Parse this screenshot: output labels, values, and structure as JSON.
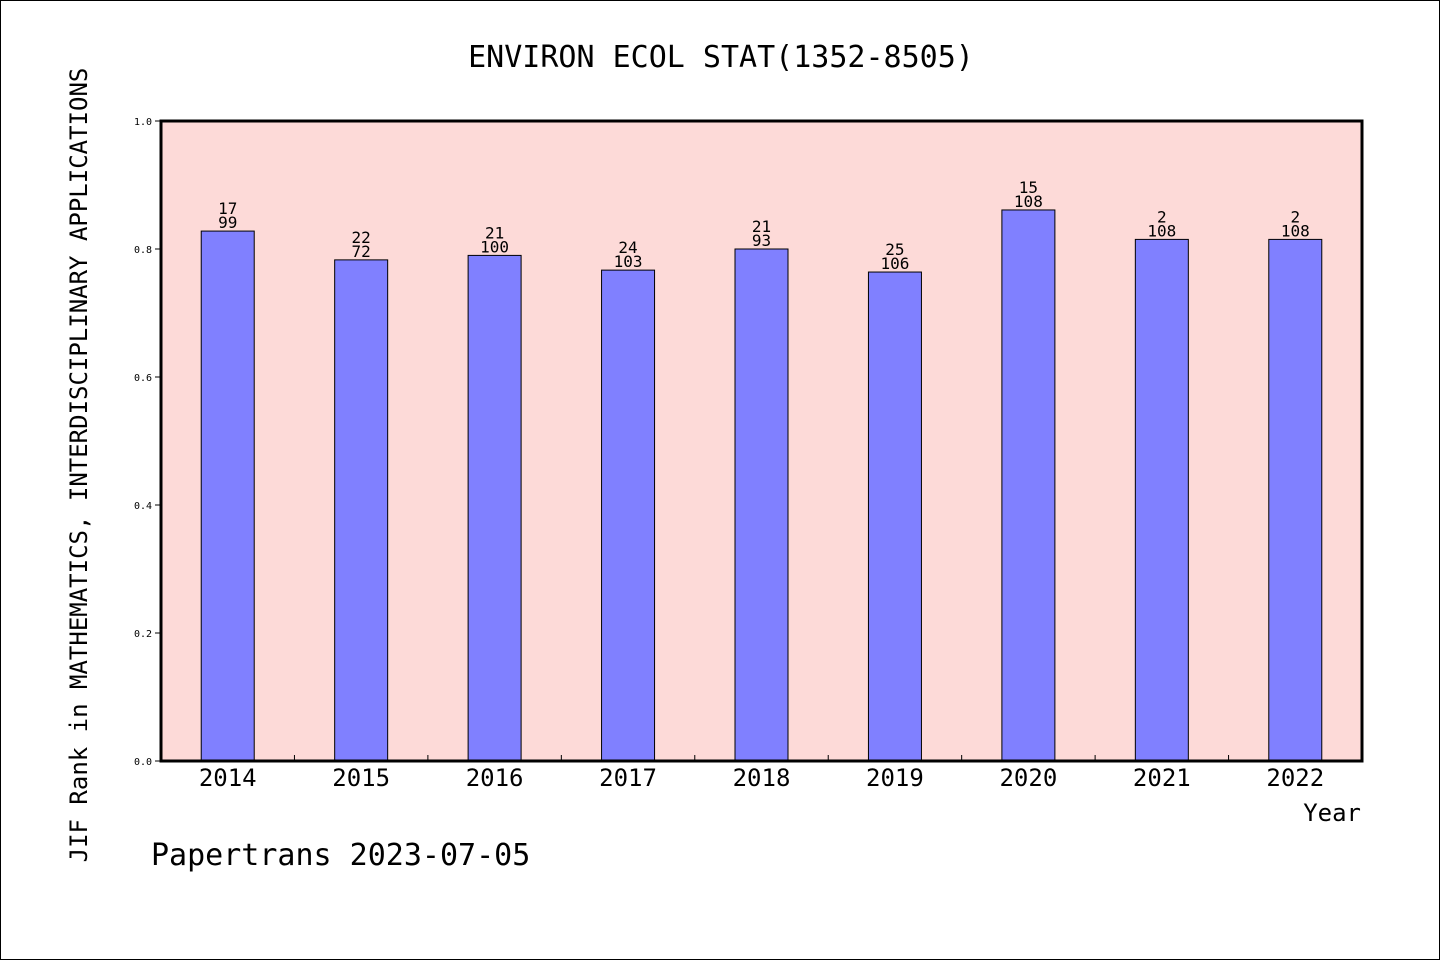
{
  "chart_data": {
    "type": "bar",
    "title": "ENVIRON ECOL STAT(1352-8505)",
    "xlabel": "Year",
    "ylabel": "JIF Rank in MATHEMATICS,  INTERDISCIPLINARY APPLICATIONS",
    "ylim": [
      0,
      1.0
    ],
    "yticks": [
      "0.0",
      "0.2",
      "0.4",
      "0.6",
      "0.8",
      "1.0"
    ],
    "categories": [
      "2014",
      "2015",
      "2016",
      "2017",
      "2018",
      "2019",
      "2020",
      "2021",
      "2022"
    ],
    "values": [
      0.828,
      0.783,
      0.79,
      0.767,
      0.8,
      0.764,
      0.861,
      0.815,
      0.815
    ],
    "rank": [
      "17",
      "22",
      "21",
      "24",
      "21",
      "25",
      "15",
      "2",
      "2"
    ],
    "total": [
      "99",
      "72",
      "100",
      "103",
      "93",
      "106",
      "108",
      "108",
      "108"
    ],
    "grid": false,
    "colors": {
      "plot_background": "#fddad8",
      "bar_fill": "#8080ff",
      "bar_stroke": "#000000"
    }
  },
  "footer": "Papertrans 2023-07-05"
}
